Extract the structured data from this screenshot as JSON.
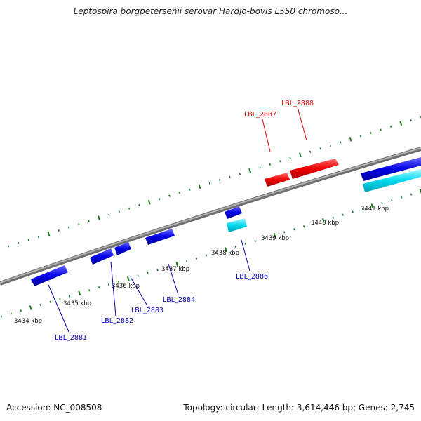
{
  "title": "Leptospira borgpetersenii serovar Hardjo-bovis L550 chromoso...",
  "footer": {
    "accession": "Accession: NC_008508",
    "info": "Topology: circular; Length: 3,614,446 bp; Genes: 2,745"
  },
  "colors": {
    "forward_gene": "#ee0000",
    "reverse_gene": "#0000e6",
    "reverse_gene_alt": "#00d8ee",
    "forward_label": "#dd0000",
    "reverse_label": "#0000bb",
    "tick": "#1a7a1a",
    "backbone": "#8a8a8a"
  },
  "scale_labels": [
    "3434 kbp",
    "3435 kbp",
    "3436 kbp",
    "3437 kbp",
    "3438 kbp",
    "3439 kbp",
    "3440 kbp",
    "3441 kbp"
  ],
  "gene_labels": [
    "LBL_2881",
    "LBL_2882",
    "LBL_2883",
    "LBL_2884",
    "LBL_2886",
    "LBL_2887",
    "LBL_2888"
  ]
}
